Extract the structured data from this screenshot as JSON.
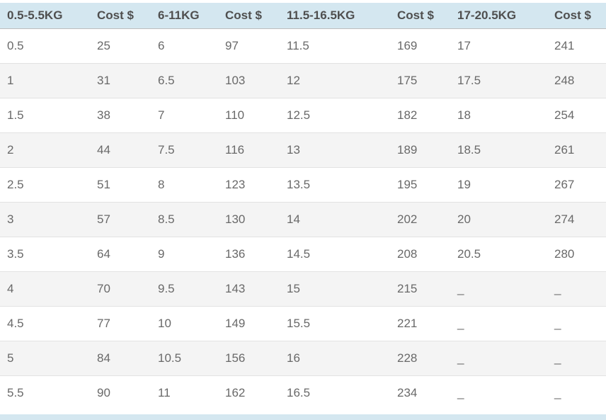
{
  "chart_data": {
    "type": "table",
    "columns": [
      "0.5-5.5KG",
      "Cost $",
      "6-11KG",
      "Cost $",
      "11.5-16.5KG",
      "Cost $",
      "17-20.5KG",
      "Cost $"
    ],
    "rows": [
      [
        "0.5",
        "25",
        "6",
        "97",
        "11.5",
        "169",
        "17",
        "241"
      ],
      [
        "1",
        "31",
        "6.5",
        "103",
        "12",
        "175",
        "17.5",
        "248"
      ],
      [
        "1.5",
        "38",
        "7",
        "110",
        "12.5",
        "182",
        "18",
        "254"
      ],
      [
        "2",
        "44",
        "7.5",
        "116",
        "13",
        "189",
        "18.5",
        "261"
      ],
      [
        "2.5",
        "51",
        "8",
        "123",
        "13.5",
        "195",
        "19",
        "267"
      ],
      [
        "3",
        "57",
        "8.5",
        "130",
        "14",
        "202",
        "20",
        "274"
      ],
      [
        "3.5",
        "64",
        "9",
        "136",
        "14.5",
        "208",
        "20.5",
        "280"
      ],
      [
        "4",
        "70",
        "9.5",
        "143",
        "15",
        "215",
        "_",
        "_"
      ],
      [
        "4.5",
        "77",
        "10",
        "149",
        "15.5",
        "221",
        "_",
        "_"
      ],
      [
        "5",
        "84",
        "10.5",
        "156",
        "16",
        "228",
        "_",
        "_"
      ],
      [
        "5.5",
        "90",
        "11",
        "162",
        "16.5",
        "234",
        "_",
        "_"
      ]
    ],
    "layout": {
      "striped": true,
      "header_position": "top",
      "grid": "horizontal-only"
    }
  },
  "colors": {
    "header_bg": "#d4e7f0",
    "header_text": "#4f4f4f",
    "body_text": "#696969",
    "stripe_bg": "#f4f4f4",
    "row_border": "#e2e2e2",
    "header_border": "#bdbdbd",
    "footer_strip": "#d4e7f0"
  }
}
